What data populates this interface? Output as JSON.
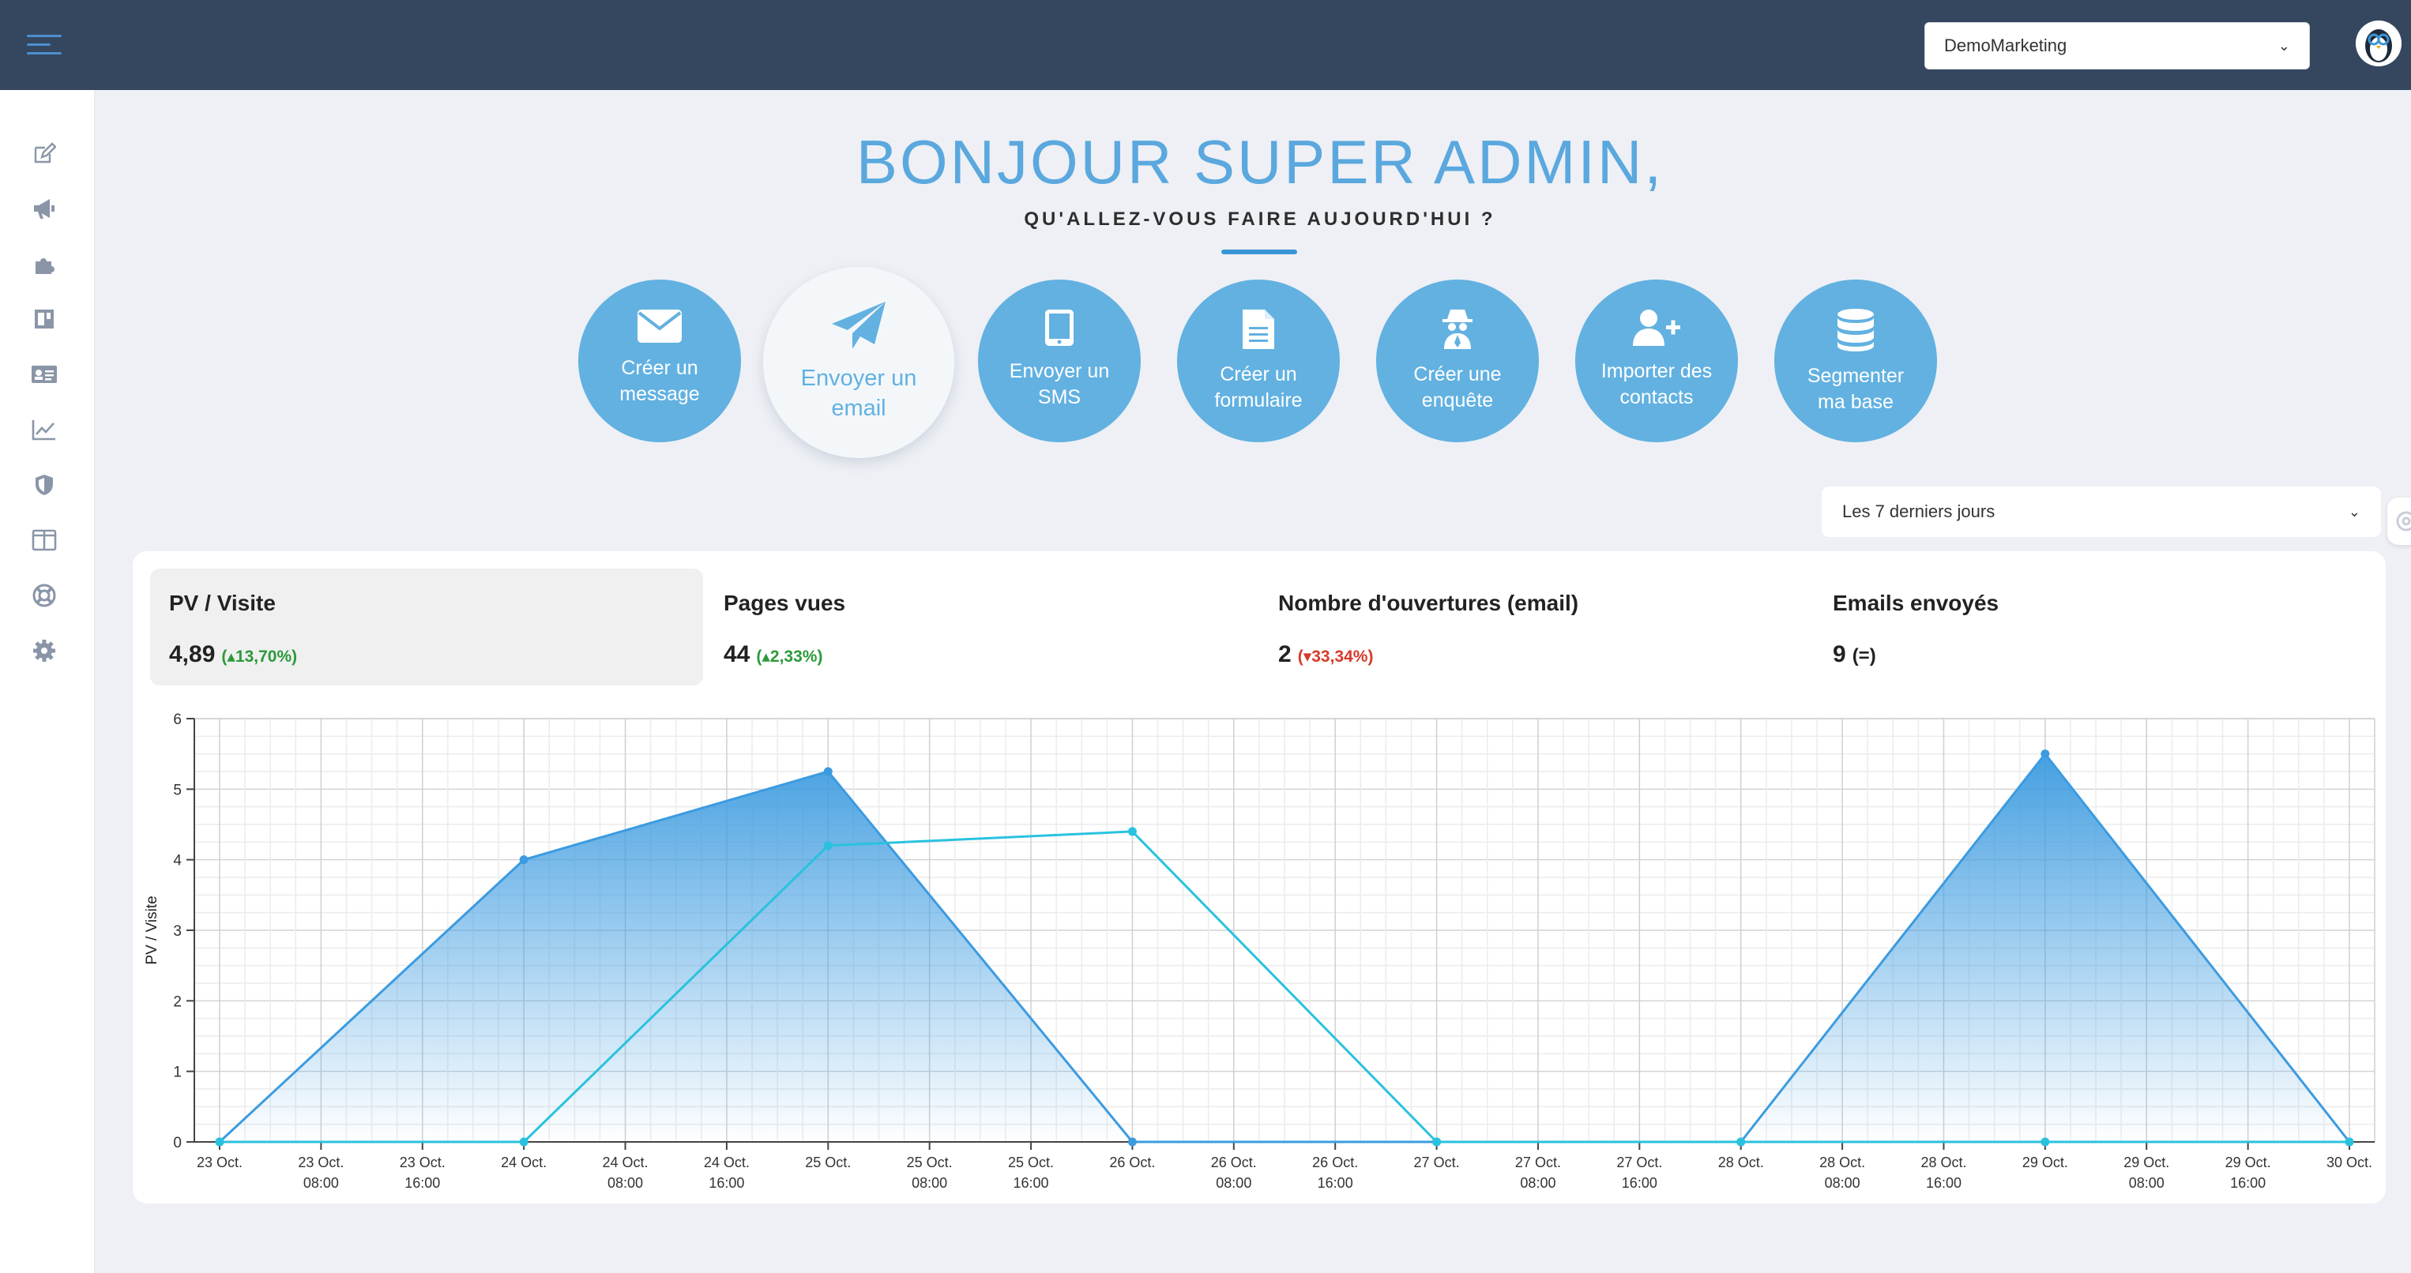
{
  "header": {
    "account_selected": "DemoMarketing"
  },
  "greeting": {
    "title": "BONJOUR SUPER ADMIN,",
    "subtitle": "QU'ALLEZ-VOUS FAIRE AUJOURD'HUI ?"
  },
  "sidebar": {
    "icons": [
      "edit-icon",
      "megaphone-icon",
      "puzzle-icon",
      "layout-icon",
      "contact-card-icon",
      "line-chart-icon",
      "shield-icon",
      "columns-icon",
      "lifebuoy-icon",
      "gear-icon"
    ]
  },
  "actions": [
    {
      "label": "Créer un\nmessage",
      "icon": "envelope-icon"
    },
    {
      "label": "Envoyer un\nemail",
      "icon": "paper-plane-icon",
      "active": true
    },
    {
      "label": "Envoyer un\nSMS",
      "icon": "tablet-icon"
    },
    {
      "label": "Créer un\nformulaire",
      "icon": "document-icon"
    },
    {
      "label": "Créer une\nenquête",
      "icon": "spy-icon"
    },
    {
      "label": "Importer des\ncontacts",
      "icon": "user-plus-icon"
    },
    {
      "label": "Segmenter\nma base",
      "icon": "database-icon"
    }
  ],
  "period": {
    "selected": "Les 7 derniers jours"
  },
  "kpis": [
    {
      "title": "PV / Visite",
      "value": "4,89",
      "delta": "13,70%",
      "trend": "up"
    },
    {
      "title": "Pages vues",
      "value": "44",
      "delta": "2,33%",
      "trend": "up"
    },
    {
      "title": "Nombre d'ouvertures (email)",
      "value": "2",
      "delta": "33,34%",
      "trend": "down"
    },
    {
      "title": "Emails envoyés",
      "value": "9",
      "delta": "(=)",
      "trend": "eq"
    }
  ],
  "colors": {
    "topbar": "#34475f",
    "accent": "#5aa8de",
    "series_area": "#3c9be0",
    "series_line": "#29c2de",
    "up": "#2b9a3a",
    "down": "#d63a2a"
  },
  "chart_data": {
    "type": "area",
    "ylabel": "PV / Visite",
    "ylim": [
      0,
      6
    ],
    "yticks": [
      0,
      1,
      2,
      3,
      4,
      5,
      6
    ],
    "x": [
      [
        "23 Oct."
      ],
      [
        "23 Oct.",
        "08:00"
      ],
      [
        "23 Oct.",
        "16:00"
      ],
      [
        "24 Oct."
      ],
      [
        "24 Oct.",
        "08:00"
      ],
      [
        "24 Oct.",
        "16:00"
      ],
      [
        "25 Oct."
      ],
      [
        "25 Oct.",
        "08:00"
      ],
      [
        "25 Oct.",
        "16:00"
      ],
      [
        "26 Oct."
      ],
      [
        "26 Oct.",
        "08:00"
      ],
      [
        "26 Oct.",
        "16:00"
      ],
      [
        "27 Oct."
      ],
      [
        "27 Oct.",
        "08:00"
      ],
      [
        "27 Oct.",
        "16:00"
      ],
      [
        "28 Oct."
      ],
      [
        "28 Oct.",
        "08:00"
      ],
      [
        "28 Oct.",
        "16:00"
      ],
      [
        "29 Oct."
      ],
      [
        "29 Oct.",
        "08:00"
      ],
      [
        "29 Oct.",
        "16:00"
      ],
      [
        "30 Oct."
      ]
    ],
    "grid": true,
    "series": [
      {
        "style": "area",
        "points": [
          [
            "23 Oct.",
            0
          ],
          [
            "24 Oct.",
            4.0
          ],
          [
            "25 Oct.",
            5.25
          ],
          [
            "26 Oct.",
            0
          ],
          [
            "27 Oct.",
            0
          ],
          [
            "28 Oct.",
            0
          ],
          [
            "29 Oct.",
            5.5
          ],
          [
            "30 Oct.",
            0
          ]
        ]
      },
      {
        "style": "line",
        "points": [
          [
            "23 Oct.",
            0
          ],
          [
            "24 Oct.",
            0
          ],
          [
            "25 Oct.",
            4.2
          ],
          [
            "26 Oct.",
            4.4
          ],
          [
            "27 Oct.",
            0
          ],
          [
            "28 Oct.",
            0
          ],
          [
            "29 Oct.",
            0
          ],
          [
            "30 Oct.",
            0
          ]
        ]
      }
    ]
  }
}
